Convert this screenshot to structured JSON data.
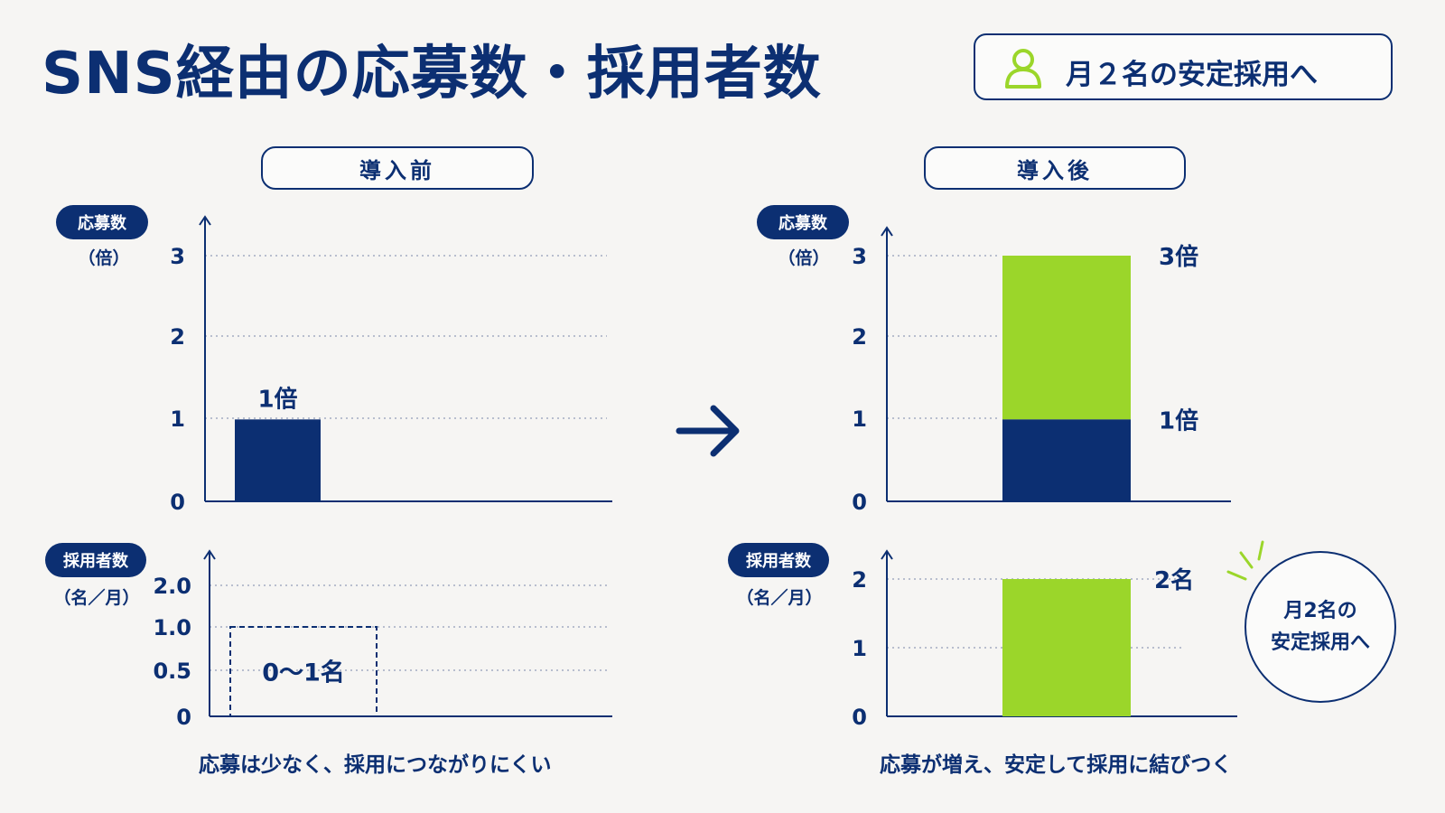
{
  "title": "SNS経由の応募数・採用者数",
  "badge": {
    "text": "月２名の安定採用へ",
    "icon": "person-icon"
  },
  "before": {
    "label": "導入前",
    "applicants_tag": "応募数",
    "applicants_unit": "（倍）",
    "hires_tag": "採用者数",
    "hires_unit": "（名／月）",
    "caption": "応募は少なく、採用につながりにくい"
  },
  "after": {
    "label": "導入後",
    "applicants_tag": "応募数",
    "applicants_unit": "（倍）",
    "hires_tag": "採用者数",
    "hires_unit": "（名／月）",
    "caption": "応募が増え、安定して採用に結びつく"
  },
  "arrow_icon": "right-arrow-icon",
  "circle": {
    "line1": "月2名の",
    "line2": "安定採用へ"
  },
  "colors": {
    "navy": "#0c2f72",
    "green": "#9bd62a",
    "background": "#f6f5f3"
  },
  "chart_data": [
    {
      "id": "before-applicants",
      "type": "bar",
      "title": "",
      "ylabel": "応募数（倍）",
      "yticks": [
        "0",
        "1",
        "2",
        "3"
      ],
      "ylim": [
        0,
        3
      ],
      "grid": true,
      "values": [
        1
      ],
      "data_labels": [
        "1倍"
      ]
    },
    {
      "id": "before-hires",
      "type": "bar",
      "title": "",
      "ylabel": "採用者数（名／月）",
      "yticks": [
        "0",
        "0.5",
        "1.0",
        "2.0"
      ],
      "ylim": [
        0,
        2
      ],
      "grid": true,
      "range": [
        0,
        1
      ],
      "style": "dashed-box",
      "data_labels": [
        "0〜1名"
      ]
    },
    {
      "id": "after-applicants",
      "type": "bar",
      "title": "",
      "ylabel": "応募数（倍）",
      "yticks": [
        "0",
        "1",
        "2",
        "3"
      ],
      "ylim": [
        0,
        3
      ],
      "grid": true,
      "stacked": true,
      "values": [
        1,
        3
      ],
      "data_labels": [
        "1倍",
        "3倍"
      ]
    },
    {
      "id": "after-hires",
      "type": "bar",
      "title": "",
      "ylabel": "採用者数（名／月）",
      "yticks": [
        "0",
        "1",
        "2"
      ],
      "ylim": [
        0,
        2
      ],
      "grid": true,
      "values": [
        2
      ],
      "data_labels": [
        "2名"
      ]
    }
  ]
}
